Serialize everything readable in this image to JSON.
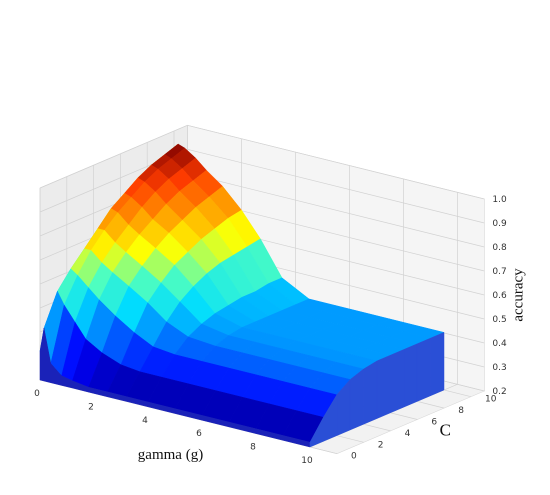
{
  "chart_data": {
    "type": "surface3d",
    "title": "",
    "xlabel": "gamma (g)",
    "ylabel": "C",
    "zlabel": "accuracy",
    "x_ticks": [
      "0",
      "2",
      "4",
      "6",
      "8",
      "10"
    ],
    "y_ticks": [
      "0",
      "2",
      "4",
      "6",
      "8",
      "10"
    ],
    "z_ticks": [
      "0.2",
      "0.3",
      "0.4",
      "0.5",
      "0.6",
      "0.7",
      "0.8",
      "0.9",
      "1.0"
    ],
    "xlim": [
      0,
      11
    ],
    "ylim": [
      0,
      11
    ],
    "zlim": [
      0.2,
      1.0
    ],
    "colormap": "jet",
    "grid": true,
    "samples": {
      "gamma": [
        0,
        0.15,
        0.4,
        0.8,
        1.2,
        1.8,
        2.5,
        3.2,
        4,
        5,
        6,
        7,
        8,
        9,
        10
      ],
      "C": [
        0,
        1,
        2,
        3,
        4,
        5,
        6,
        7,
        8,
        9,
        10
      ],
      "accuracy": [
        [
          0.32,
          0.42,
          0.28,
          0.24,
          0.23,
          0.22,
          0.22,
          0.22,
          0.22,
          0.22,
          0.22,
          0.22,
          0.22,
          0.22,
          0.22
        ],
        [
          0.45,
          0.55,
          0.5,
          0.44,
          0.38,
          0.34,
          0.31,
          0.3,
          0.3,
          0.3,
          0.3,
          0.3,
          0.3,
          0.3,
          0.3
        ],
        [
          0.52,
          0.62,
          0.6,
          0.56,
          0.52,
          0.47,
          0.42,
          0.38,
          0.37,
          0.37,
          0.37,
          0.37,
          0.37,
          0.37,
          0.37
        ],
        [
          0.55,
          0.68,
          0.68,
          0.64,
          0.61,
          0.57,
          0.52,
          0.46,
          0.42,
          0.41,
          0.41,
          0.41,
          0.41,
          0.41,
          0.41
        ],
        [
          0.56,
          0.74,
          0.74,
          0.7,
          0.67,
          0.63,
          0.58,
          0.52,
          0.45,
          0.43,
          0.43,
          0.43,
          0.43,
          0.43,
          0.43
        ],
        [
          0.57,
          0.8,
          0.79,
          0.75,
          0.72,
          0.68,
          0.63,
          0.56,
          0.47,
          0.44,
          0.44,
          0.44,
          0.44,
          0.44,
          0.44
        ],
        [
          0.58,
          0.84,
          0.83,
          0.8,
          0.76,
          0.72,
          0.66,
          0.59,
          0.48,
          0.44,
          0.44,
          0.44,
          0.44,
          0.44,
          0.44
        ],
        [
          0.58,
          0.88,
          0.87,
          0.84,
          0.8,
          0.75,
          0.69,
          0.61,
          0.49,
          0.44,
          0.44,
          0.44,
          0.44,
          0.44,
          0.44
        ],
        [
          0.59,
          0.91,
          0.9,
          0.87,
          0.83,
          0.78,
          0.71,
          0.62,
          0.49,
          0.44,
          0.44,
          0.44,
          0.44,
          0.44,
          0.44
        ],
        [
          0.59,
          0.93,
          0.92,
          0.89,
          0.85,
          0.8,
          0.73,
          0.63,
          0.5,
          0.44,
          0.44,
          0.44,
          0.44,
          0.44,
          0.44
        ],
        [
          0.59,
          0.95,
          0.94,
          0.91,
          0.87,
          0.82,
          0.74,
          0.64,
          0.5,
          0.44,
          0.44,
          0.44,
          0.44,
          0.44,
          0.44
        ]
      ]
    }
  }
}
